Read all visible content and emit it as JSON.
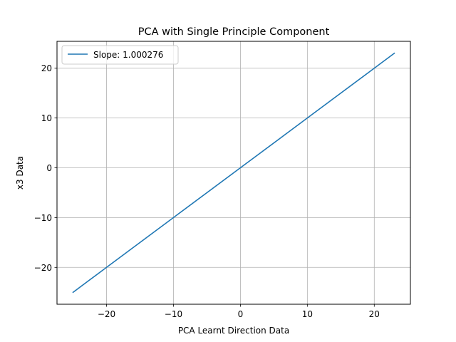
{
  "chart_data": {
    "type": "line",
    "title": "PCA with Single Principle Component",
    "xlabel": "PCA Learnt Direction Data",
    "ylabel": "x3 Data",
    "xlim": [
      -27.4,
      25.4
    ],
    "ylim": [
      -27.4,
      25.4
    ],
    "xticks": [
      -20,
      -10,
      0,
      10,
      20
    ],
    "yticks": [
      -20,
      -10,
      0,
      10,
      20
    ],
    "xtick_labels": [
      "−20",
      "−10",
      "0",
      "10",
      "20"
    ],
    "ytick_labels": [
      "−20",
      "−10",
      "0",
      "10",
      "20"
    ],
    "grid": true,
    "legend_position": "top-left",
    "series": [
      {
        "name": "Slope: 1.000276",
        "color": "#1f77b4",
        "x": [
          -25,
          -20,
          -10,
          0,
          10,
          20,
          23
        ],
        "y": [
          -25,
          -20,
          -10,
          0,
          10,
          20,
          23
        ]
      }
    ]
  }
}
